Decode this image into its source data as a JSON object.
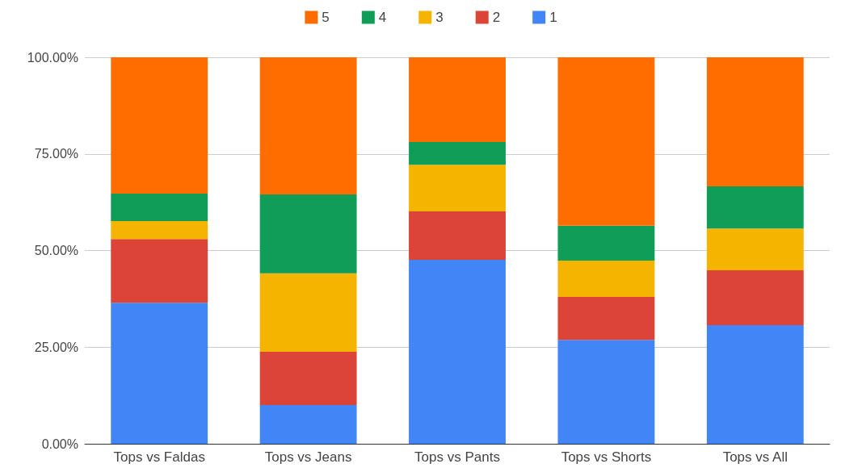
{
  "chart_data": {
    "type": "bar",
    "stacked": true,
    "categories": [
      "Tops vs Faldas",
      "Tops vs Jeans",
      "Tops vs Pants",
      "Tops vs Shorts",
      "Tops vs All"
    ],
    "series": [
      {
        "name": "1",
        "color": "#4285f4",
        "values": [
          36.5,
          10.0,
          47.6,
          26.9,
          30.7
        ]
      },
      {
        "name": "2",
        "color": "#db4437",
        "values": [
          16.5,
          13.8,
          12.5,
          11.1,
          14.2
        ]
      },
      {
        "name": "3",
        "color": "#f4b400",
        "values": [
          4.6,
          20.3,
          12.1,
          9.4,
          10.8
        ]
      },
      {
        "name": "4",
        "color": "#0f9d58",
        "values": [
          7.1,
          20.4,
          5.9,
          9.0,
          10.9
        ]
      },
      {
        "name": "5",
        "color": "#ff6d01",
        "values": [
          35.3,
          35.5,
          21.9,
          43.6,
          33.4
        ]
      }
    ],
    "ylim": [
      0,
      100
    ],
    "yticks": [
      {
        "value": 0,
        "label": "0.00%"
      },
      {
        "value": 25,
        "label": "25.00%"
      },
      {
        "value": 50,
        "label": "50.00%"
      },
      {
        "value": 75,
        "label": "75.00%"
      },
      {
        "value": 100,
        "label": "100.00%"
      }
    ],
    "grid": "y",
    "legend": "top"
  }
}
